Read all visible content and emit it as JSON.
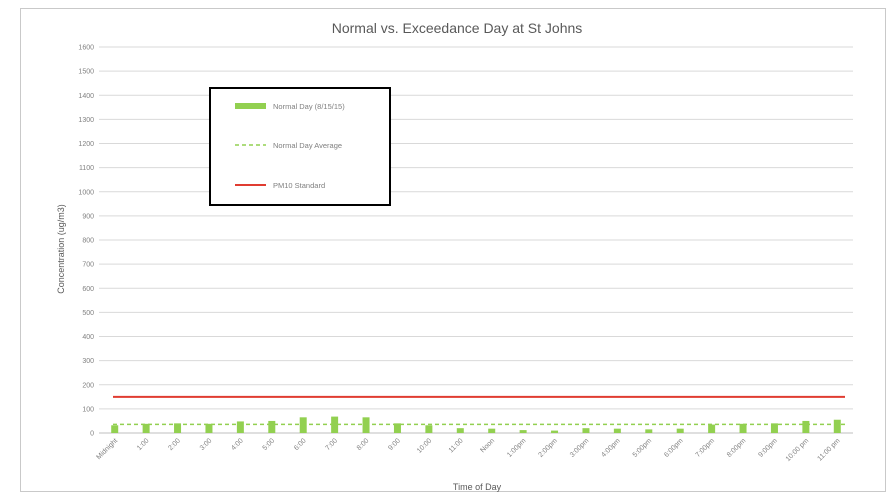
{
  "chart_data": {
    "type": "bar",
    "title": "Normal vs. Exceedance Day at St Johns",
    "xlabel": "Time of Day",
    "ylabel": "Concentration (ug/m3)",
    "ylim": [
      0,
      1600
    ],
    "yticks": [
      0,
      100,
      200,
      300,
      400,
      500,
      600,
      700,
      800,
      900,
      1000,
      1100,
      1200,
      1300,
      1400,
      1500,
      1600
    ],
    "categories": [
      "Midnight",
      "1:00",
      "2:00",
      "3:00",
      "4:00",
      "5:00",
      "6:00",
      "7:00",
      "8:00",
      "9:00",
      "10:00",
      "11:00",
      "Noon",
      "1:00pm",
      "2:00pm",
      "3:00pm",
      "4:00pm",
      "5:00pm",
      "6:00pm",
      "7:00pm",
      "8:00pm",
      "9:00pm",
      "10:00 pm",
      "11:00 pm"
    ],
    "series": [
      {
        "name": "Normal Day (8/15/15)",
        "kind": "bar",
        "color": "#92d050",
        "values": [
          32,
          38,
          40,
          38,
          48,
          50,
          65,
          68,
          65,
          40,
          32,
          20,
          18,
          12,
          10,
          20,
          18,
          15,
          18,
          35,
          38,
          40,
          50,
          55
        ]
      },
      {
        "name": "Normal Day Average",
        "kind": "dashed-line",
        "color": "#92d050",
        "value": 36
      },
      {
        "name": "PM10 Standard",
        "kind": "line",
        "color": "#e03c31",
        "value": 150
      }
    ],
    "grid": true,
    "legend_position": "top-left"
  }
}
